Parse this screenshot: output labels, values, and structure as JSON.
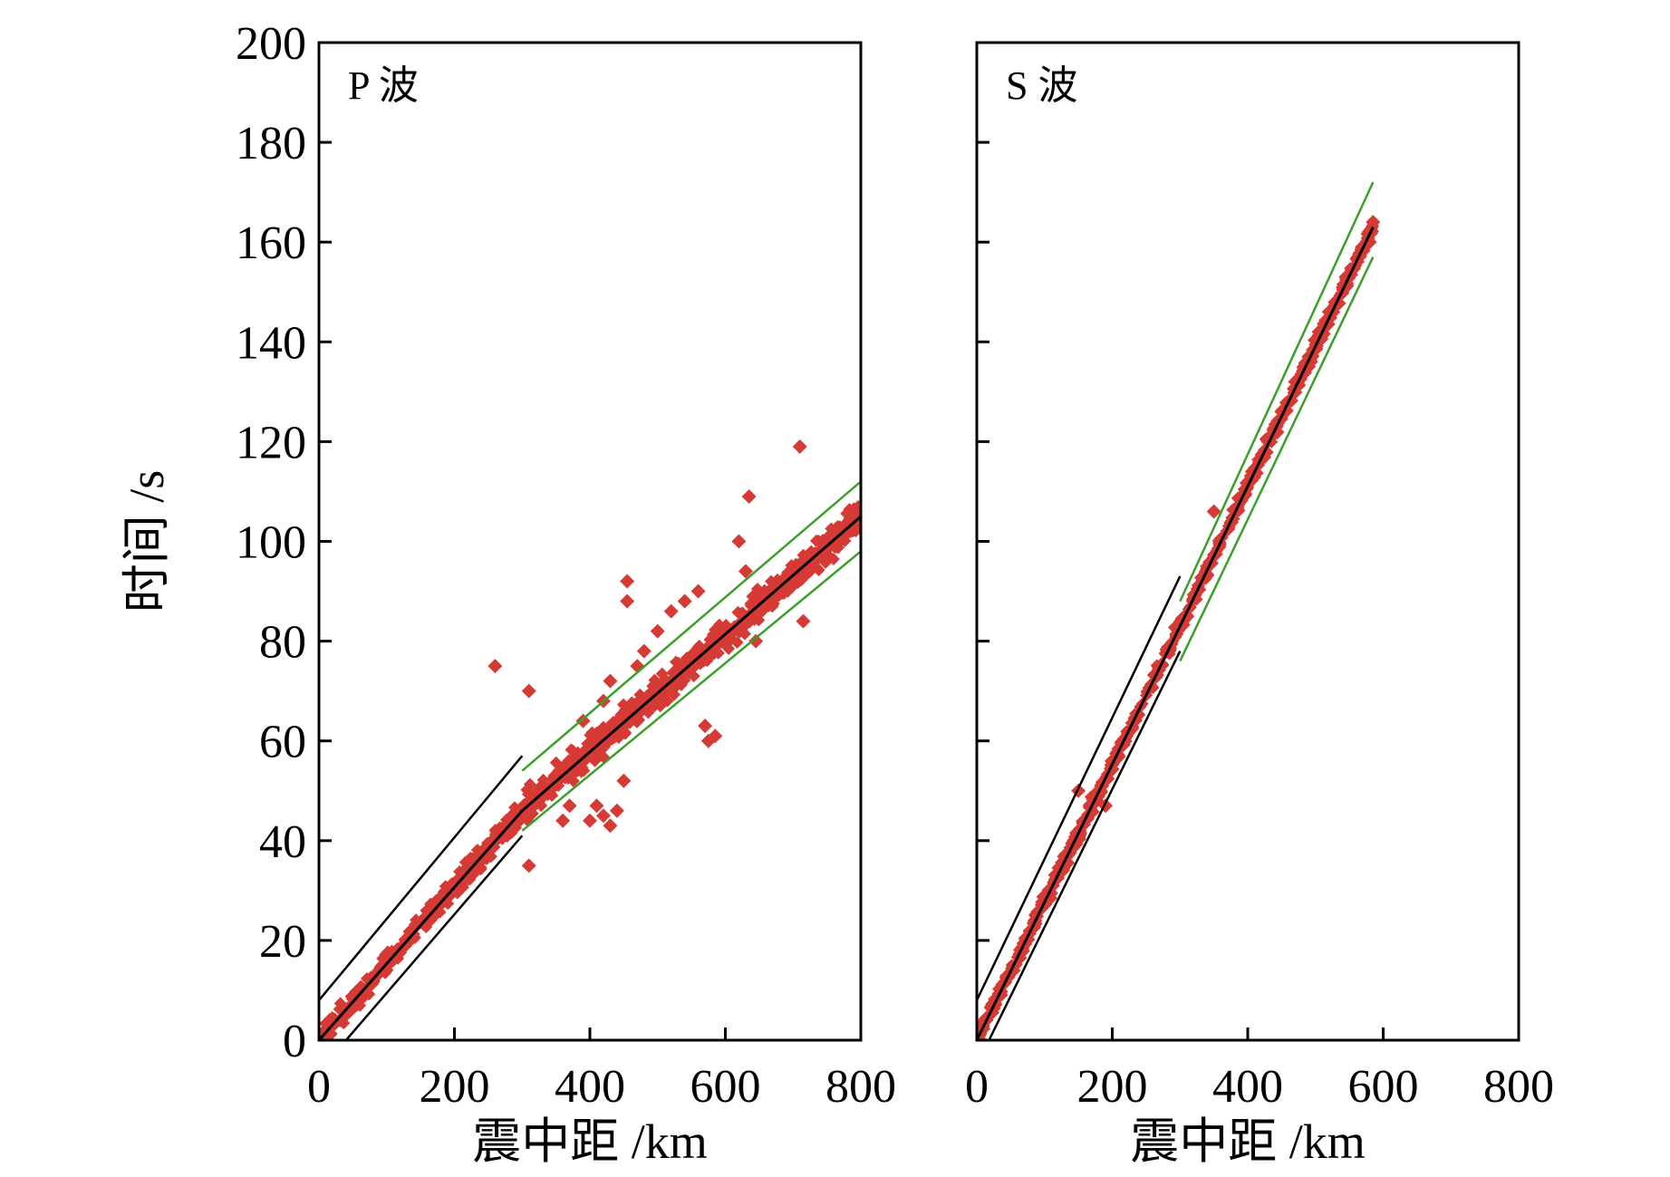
{
  "colors": {
    "points": "#d63a35",
    "fit_line": "#000000",
    "bound_p": "#000000",
    "bound_green": "#3aa02a",
    "frame": "#000000"
  },
  "chart_data": [
    {
      "type": "scatter",
      "panel_title": "P 波",
      "xlabel": "震中距 /km",
      "ylabel": "时间 /s",
      "xlim": [
        0,
        800
      ],
      "ylim": [
        0,
        200
      ],
      "xticks": [
        0,
        200,
        400,
        600,
        800
      ],
      "yticks": [
        0,
        20,
        40,
        60,
        80,
        100,
        120,
        140,
        160,
        180,
        200
      ],
      "lines": [
        {
          "role": "fit",
          "color": "black",
          "points": [
            [
              0,
              0
            ],
            [
              300,
              46
            ],
            [
              800,
              105
            ]
          ]
        },
        {
          "role": "upper-bound-near",
          "color": "black",
          "points": [
            [
              0,
              8
            ],
            [
              300,
              57
            ]
          ]
        },
        {
          "role": "lower-bound-near",
          "color": "black",
          "points": [
            [
              40,
              0
            ],
            [
              300,
              41
            ]
          ]
        },
        {
          "role": "upper-bound-far",
          "color": "green",
          "points": [
            [
              300,
              54
            ],
            [
              800,
              112
            ]
          ]
        },
        {
          "role": "lower-bound-far",
          "color": "green",
          "points": [
            [
              300,
              42
            ],
            [
              800,
              98
            ]
          ]
        }
      ],
      "outliers": [
        [
          260,
          75
        ],
        [
          310,
          70
        ],
        [
          310,
          35
        ],
        [
          455,
          92
        ],
        [
          570,
          63
        ],
        [
          585,
          61
        ],
        [
          575,
          60
        ],
        [
          635,
          109
        ],
        [
          620,
          100
        ],
        [
          710,
          119
        ],
        [
          715,
          84
        ],
        [
          645,
          80
        ],
        [
          630,
          94
        ],
        [
          560,
          90
        ],
        [
          540,
          88
        ],
        [
          520,
          86
        ],
        [
          500,
          82
        ],
        [
          480,
          78
        ],
        [
          470,
          75
        ],
        [
          420,
          45
        ],
        [
          430,
          43
        ],
        [
          440,
          46
        ],
        [
          410,
          47
        ],
        [
          400,
          44
        ],
        [
          450,
          52
        ],
        [
          360,
          44
        ],
        [
          370,
          47
        ],
        [
          455,
          88
        ],
        [
          390,
          64
        ],
        [
          420,
          68
        ],
        [
          430,
          72
        ]
      ]
    },
    {
      "type": "scatter",
      "panel_title": "S 波",
      "xlabel": "震中距 /km",
      "ylabel": "",
      "xlim": [
        0,
        800
      ],
      "ylim": [
        0,
        200
      ],
      "xticks": [
        0,
        200,
        400,
        600,
        800
      ],
      "yticks": [
        0,
        20,
        40,
        60,
        80,
        100,
        120,
        140,
        160,
        180,
        200
      ],
      "lines": [
        {
          "role": "fit",
          "color": "black",
          "points": [
            [
              0,
              0
            ],
            [
              300,
              83
            ],
            [
              585,
              163
            ]
          ]
        },
        {
          "role": "upper-bound-near",
          "color": "black",
          "points": [
            [
              0,
              8
            ],
            [
              300,
              93
            ]
          ]
        },
        {
          "role": "lower-bound-near",
          "color": "black",
          "points": [
            [
              18,
              0
            ],
            [
              300,
              78
            ]
          ]
        },
        {
          "role": "upper-bound-far",
          "color": "green",
          "points": [
            [
              300,
              88
            ],
            [
              585,
              172
            ]
          ]
        },
        {
          "role": "lower-bound-far",
          "color": "green",
          "points": [
            [
              300,
              76
            ],
            [
              585,
              157
            ]
          ]
        }
      ],
      "outliers": [
        [
          585,
          164
        ],
        [
          580,
          160
        ],
        [
          545,
          153
        ],
        [
          520,
          146
        ],
        [
          505,
          142
        ],
        [
          470,
          132
        ],
        [
          450,
          126
        ],
        [
          430,
          120
        ],
        [
          350,
          106
        ],
        [
          190,
          47
        ],
        [
          150,
          50
        ]
      ]
    }
  ]
}
